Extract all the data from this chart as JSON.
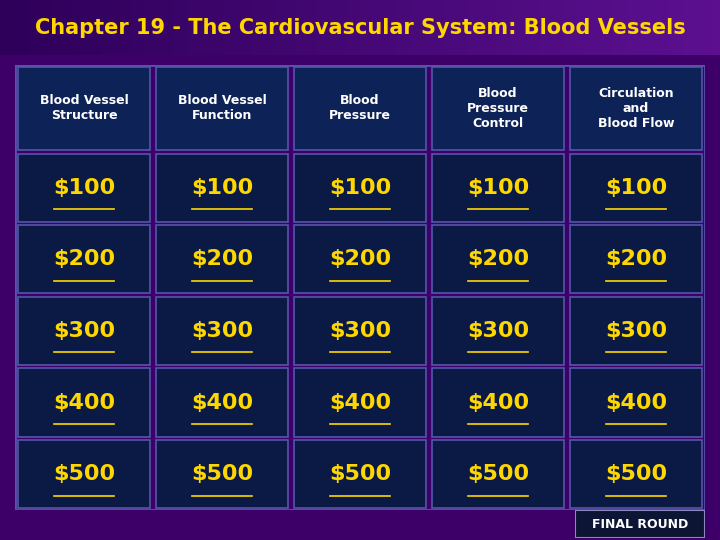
{
  "title": "Chapter 19 - The Cardiovascular System: Blood Vessels",
  "title_color": "#FFD700",
  "title_bg_top": "#3B0070",
  "title_bg_bottom": "#5A0090",
  "header_bg": "#0D2257",
  "cell_bg": "#0A1A45",
  "cell_border": "#5555AA",
  "header_text_color": "#FFFFFF",
  "money_text_color": "#FFD700",
  "final_round_bg": "#0D1535",
  "final_round_border": "#8888BB",
  "final_round_text": "#FFFFFF",
  "bg_color": "#3D0068",
  "columns": [
    "Blood Vessel\nStructure",
    "Blood Vessel\nFunction",
    "Blood\nPressure",
    "Blood\nPressure\nControl",
    "Circulation\nand\nBlood Flow"
  ],
  "rows": [
    "$100",
    "$200",
    "$300",
    "$400",
    "$500"
  ],
  "title_fontsize": 15,
  "header_fontsize": 9,
  "money_fontsize": 16
}
